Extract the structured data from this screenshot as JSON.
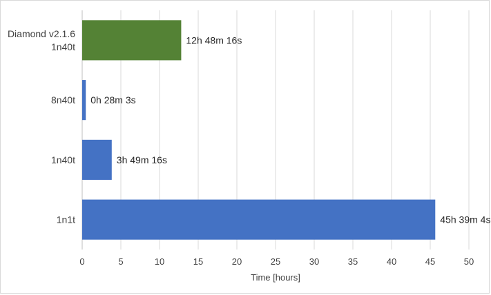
{
  "chart_data": {
    "type": "bar",
    "orientation": "horizontal",
    "categories": [
      [
        "Diamond v2.1.6",
        "1n40t"
      ],
      [
        "8n40t"
      ],
      [
        "1n40t"
      ],
      [
        "1n1t"
      ]
    ],
    "values": [
      12.804,
      0.468,
      3.821,
      45.651
    ],
    "data_labels": [
      "12h 48m 16s",
      "0h 28m 3s",
      "3h 49m 16s",
      "45h 39m 4s"
    ],
    "bar_colors": [
      "#548235",
      "#4472c4",
      "#4472c4",
      "#4472c4"
    ],
    "xlabel": "Time [hours]",
    "xlim": [
      0,
      50
    ],
    "xticks": [
      0,
      5,
      10,
      15,
      20,
      25,
      30,
      35,
      40,
      45,
      50
    ],
    "grid": "vertical",
    "legend": "none"
  }
}
